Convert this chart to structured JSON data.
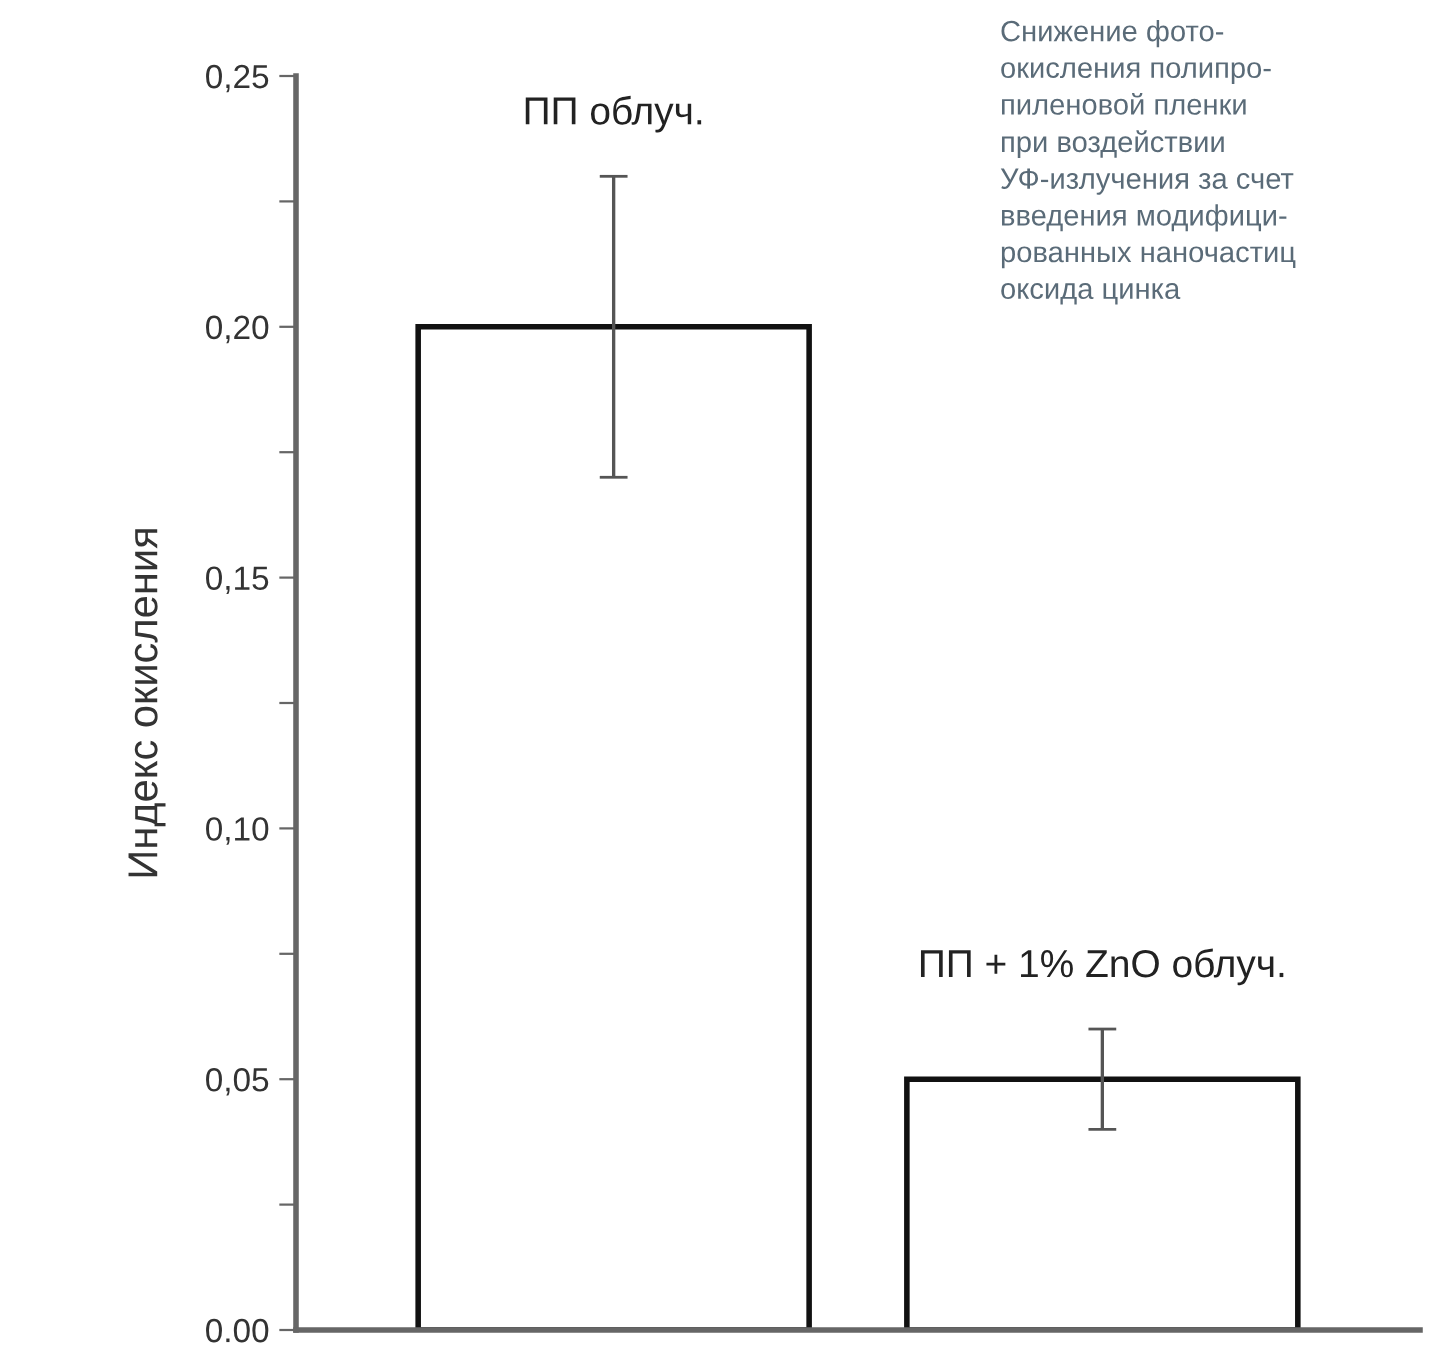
{
  "chart_data": {
    "type": "bar",
    "ylabel": "Индекс окисления",
    "categories": [
      "ПП облуч.",
      "ПП + 1% ZnO облуч."
    ],
    "values": [
      0.2,
      0.05
    ],
    "errors": [
      0.03,
      0.01
    ],
    "color": "#ffffff",
    "ylim": [
      0,
      0.25
    ],
    "yticks": [
      {
        "value": 0,
        "label": "0.00"
      },
      {
        "value": 0.025,
        "label": null
      },
      {
        "value": 0.05,
        "label": "0,05"
      },
      {
        "value": 0.075,
        "label": null
      },
      {
        "value": 0.1,
        "label": "0,10"
      },
      {
        "value": 0.125,
        "label": null
      },
      {
        "value": 0.15,
        "label": "0,15"
      },
      {
        "value": 0.175,
        "label": null
      },
      {
        "value": 0.2,
        "label": "0,20"
      },
      {
        "value": 0.225,
        "label": null
      },
      {
        "value": 0.25,
        "label": "0,25"
      }
    ],
    "grid": false,
    "legend": false,
    "annotations": [
      "Снижение фото-\nокисления полипро-\nпиленовой пленки\nпри воздействии\nУФ-излучения за счет\nвведения модифици-\nрованных наночастиц\nоксида цинка"
    ]
  }
}
